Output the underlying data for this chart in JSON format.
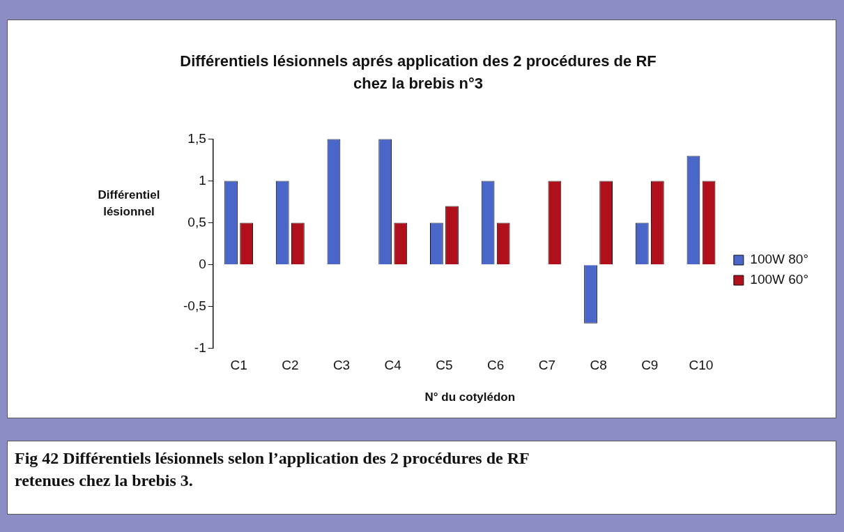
{
  "chart_data": {
    "type": "bar",
    "title": "Différentiels lésionnels aprés application des 2 procédures de RF chez la brebis n°3",
    "xlabel": "N° du cotylédon",
    "ylabel": "Différentiel lésionnel",
    "categories": [
      "C1",
      "C2",
      "C3",
      "C4",
      "C5",
      "C6",
      "C7",
      "C8",
      "C9",
      "C10"
    ],
    "series": [
      {
        "name": "100W 80°",
        "color": "#4a66c8",
        "values": [
          1,
          1,
          1.5,
          1.5,
          0.5,
          1,
          0,
          -0.7,
          0.5,
          1.3
        ]
      },
      {
        "name": "100W 60°",
        "color": "#b0101c",
        "values": [
          0.5,
          0.5,
          0,
          0.5,
          0.7,
          0.5,
          1,
          1,
          1,
          1
        ]
      }
    ],
    "ylim": [
      -1,
      1.5
    ],
    "yticks": [
      -1,
      {
        "value": -0.5,
        "label": "-0,5"
      },
      0,
      {
        "value": 0.5,
        "label": "0,5"
      },
      1,
      {
        "value": 1.5,
        "label": "1,5"
      }
    ],
    "grid": false,
    "legend": "right",
    "annotations": [
      "Fig 42 Différentiels lésionnels selon l’application des 2 procédures de RF retenues chez la brebis 3."
    ]
  }
}
